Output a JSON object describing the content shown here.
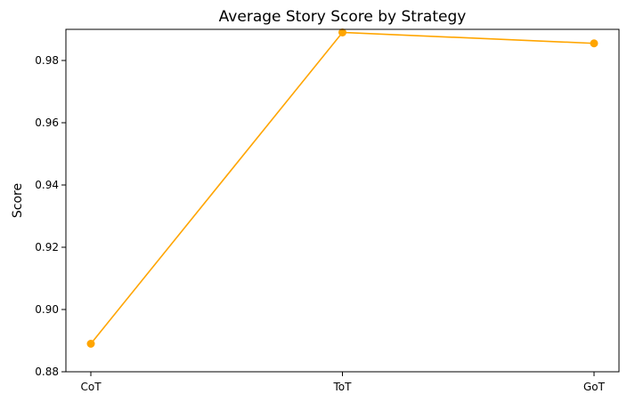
{
  "chart_data": {
    "type": "line",
    "title": "Average Story Score by Strategy",
    "xlabel": "",
    "ylabel": "Score",
    "categories": [
      "CoT",
      "ToT",
      "GoT"
    ],
    "series": [
      {
        "values": [
          0.889,
          0.989,
          0.9855
        ],
        "color": "#ffa500",
        "marker": "circle"
      }
    ],
    "ylim": [
      0.88,
      0.99
    ],
    "yticks": [
      0.88,
      0.9,
      0.92,
      0.94,
      0.96,
      0.98
    ],
    "ytick_labels": [
      "0.88",
      "0.90",
      "0.92",
      "0.94",
      "0.96",
      "0.98"
    ],
    "grid": false,
    "legend": "none"
  }
}
